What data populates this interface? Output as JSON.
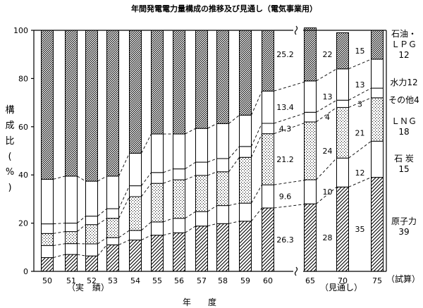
{
  "chart_data": {
    "type": "bar",
    "stacked": true,
    "title": "年間発電電力量構成の推移及び見通し（電気事業用）",
    "ylabel": "構成比(%)",
    "xlabel": "年　　度",
    "ylim": [
      0,
      100
    ],
    "y_ticks": [
      "0",
      "20",
      "40",
      "60",
      "80",
      "100"
    ],
    "group_labels": [
      "（実　績）",
      "（見通し）",
      "（試算）"
    ],
    "categories": [
      "50",
      "51",
      "52",
      "53",
      "54",
      "55",
      "56",
      "57",
      "58",
      "59",
      "60",
      "65",
      "70",
      "75"
    ],
    "series": [
      {
        "name": "原子力",
        "fill": "hatch",
        "values": [
          5.7,
          7.0,
          6.4,
          11.0,
          13.0,
          15.0,
          16.0,
          18.8,
          19.8,
          20.8,
          26.3,
          28,
          35,
          39
        ]
      },
      {
        "name": "石炭",
        "fill": "white",
        "values": [
          5.0,
          4.5,
          5.0,
          3.0,
          4.0,
          5.5,
          6.0,
          6.0,
          7.5,
          7.5,
          9.6,
          10,
          12,
          15
        ]
      },
      {
        "name": "ＬＮＧ",
        "fill": "stipple",
        "values": [
          5.0,
          5.0,
          8.0,
          8.0,
          14.0,
          16.0,
          16.0,
          15.0,
          14.0,
          19.0,
          21.2,
          24,
          21,
          18
        ]
      },
      {
        "name": "その他",
        "fill": "white",
        "values": [
          4.0,
          3.5,
          3.5,
          4.0,
          4.5,
          4.5,
          4.5,
          5.5,
          5.5,
          4.5,
          4.3,
          4,
          3,
          4
        ]
      },
      {
        "name": "水力",
        "fill": "white",
        "values": [
          18.5,
          19.5,
          14.5,
          13.5,
          13.5,
          16.0,
          14.5,
          14.0,
          14.5,
          13.0,
          13.4,
          13,
          13,
          12
        ]
      },
      {
        "name": "石油・ＬＰＧ",
        "fill": "dense",
        "values": [
          61.8,
          60.5,
          62.6,
          60.5,
          51.0,
          43.0,
          43.0,
          40.7,
          38.7,
          35.2,
          25.2,
          22,
          15,
          12
        ]
      }
    ],
    "data_labels": [
      {
        "category": "60",
        "series": "原子力",
        "text": "26.3"
      },
      {
        "category": "60",
        "series": "石炭",
        "text": "9.6"
      },
      {
        "category": "60",
        "series": "ＬＮＧ",
        "text": "21.2"
      },
      {
        "category": "60",
        "series": "その他",
        "text": "4.3"
      },
      {
        "category": "60",
        "series": "水力",
        "text": "13.4"
      },
      {
        "category": "60",
        "series": "石油・ＬＰＧ",
        "text": "25.2"
      },
      {
        "category": "65",
        "series": "原子力",
        "text": "28"
      },
      {
        "category": "65",
        "series": "石炭",
        "text": "10"
      },
      {
        "category": "65",
        "series": "ＬＮＧ",
        "text": "24"
      },
      {
        "category": "65",
        "series": "その他",
        "text": "4"
      },
      {
        "category": "65",
        "series": "水力",
        "text": "13"
      },
      {
        "category": "65",
        "series": "石油・ＬＰＧ",
        "text": "22"
      },
      {
        "category": "70",
        "series": "原子力",
        "text": "35"
      },
      {
        "category": "70",
        "series": "石炭",
        "text": "12"
      },
      {
        "category": "70",
        "series": "ＬＮＧ",
        "text": "21"
      },
      {
        "category": "70",
        "series": "その他",
        "text": "3"
      },
      {
        "category": "70",
        "series": "水力",
        "text": "13"
      },
      {
        "category": "70",
        "series": "石油・ＬＰＧ",
        "text": "15"
      }
    ],
    "right_labels": [
      {
        "series": "石油・ＬＰＧ",
        "lines": [
          "石油・",
          "ＬＰＧ",
          "12"
        ]
      },
      {
        "series": "水力",
        "lines": [
          "水力12"
        ]
      },
      {
        "series": "その他",
        "lines": [
          "その他4"
        ]
      },
      {
        "series": "ＬＮＧ",
        "lines": [
          "ＬＮＧ",
          "18"
        ]
      },
      {
        "series": "石炭",
        "lines": [
          "石 炭",
          "15"
        ]
      },
      {
        "series": "原子力",
        "lines": [
          "原子力",
          "39"
        ]
      }
    ],
    "axis_break_between": [
      "60",
      "65"
    ],
    "grid": false,
    "legend": "none"
  }
}
